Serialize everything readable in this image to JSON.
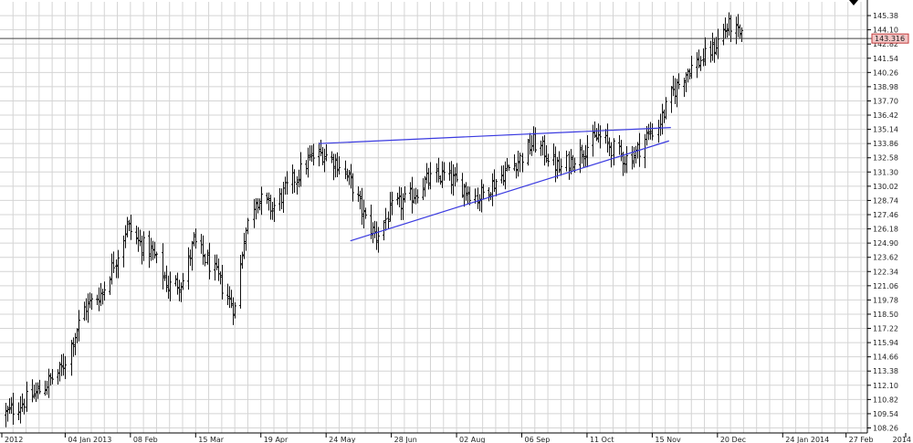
{
  "chart_data": {
    "type": "ohlc",
    "title": "",
    "xlabel": "",
    "ylabel": "",
    "ylim": [
      108.26,
      146.66
    ],
    "y_ticks": [
      145.38,
      144.1,
      142.82,
      141.54,
      140.26,
      138.98,
      137.7,
      136.42,
      135.14,
      133.86,
      132.58,
      131.3,
      130.02,
      128.74,
      127.46,
      126.18,
      124.9,
      123.62,
      122.34,
      121.06,
      119.78,
      118.5,
      117.22,
      115.94,
      114.66,
      113.38,
      112.1,
      110.82,
      109.54,
      108.26
    ],
    "x_tick_labels": [
      "2012",
      "04 Jan 2013",
      "08 Feb",
      "15 Mar",
      "19 Apr",
      "24 May",
      "28 Jun",
      "02 Aug",
      "06 Sep",
      "11 Oct",
      "15 Nov",
      "20 Dec",
      "24 Jan 2014",
      "27 Feb",
      "2014"
    ],
    "x_tick_dates": [
      "2012-12-01",
      "2013-01-04",
      "2013-02-08",
      "2013-03-15",
      "2013-04-19",
      "2013-05-24",
      "2013-06-28",
      "2013-08-02",
      "2013-09-06",
      "2013-10-11",
      "2013-11-15",
      "2013-12-20",
      "2014-01-24",
      "2014-02-27",
      "2014-03-31"
    ],
    "x_range": [
      "2012-12-01",
      "2014-03-31"
    ],
    "grid": true,
    "current_price": "143.316",
    "series_points": [
      [
        "2012-12-03",
        109.5
      ],
      [
        "2012-12-20",
        111.5
      ],
      [
        "2013-01-02",
        113.5
      ],
      [
        "2013-01-14",
        119.0
      ],
      [
        "2013-01-24",
        120.5
      ],
      [
        "2013-02-01",
        124.0
      ],
      [
        "2013-02-06",
        126.5
      ],
      [
        "2013-02-12",
        125.0
      ],
      [
        "2013-02-20",
        124.0
      ],
      [
        "2013-02-28",
        121.0
      ],
      [
        "2013-03-08",
        121.5
      ],
      [
        "2013-03-14",
        125.0
      ],
      [
        "2013-03-20",
        123.5
      ],
      [
        "2013-03-26",
        122.0
      ],
      [
        "2013-04-01",
        120.0
      ],
      [
        "2013-04-05",
        119.0
      ],
      [
        "2013-04-10",
        125.5
      ],
      [
        "2013-04-16",
        129.0
      ],
      [
        "2013-04-25",
        128.0
      ],
      [
        "2013-05-06",
        130.5
      ],
      [
        "2013-05-15",
        132.5
      ],
      [
        "2013-05-22",
        133.0
      ],
      [
        "2013-05-31",
        132.0
      ],
      [
        "2013-06-07",
        130.0
      ],
      [
        "2013-06-14",
        127.0
      ],
      [
        "2013-06-20",
        125.5
      ],
      [
        "2013-06-28",
        128.0
      ],
      [
        "2013-07-08",
        129.0
      ],
      [
        "2013-07-17",
        130.5
      ],
      [
        "2013-07-26",
        131.0
      ],
      [
        "2013-08-05",
        130.0
      ],
      [
        "2013-08-13",
        129.0
      ],
      [
        "2013-08-20",
        130.0
      ],
      [
        "2013-08-29",
        131.5
      ],
      [
        "2013-09-05",
        132.5
      ],
      [
        "2013-09-12",
        134.0
      ],
      [
        "2013-09-19",
        133.0
      ],
      [
        "2013-09-26",
        131.5
      ],
      [
        "2013-10-03",
        132.5
      ],
      [
        "2013-10-10",
        133.5
      ],
      [
        "2013-10-17",
        134.5
      ],
      [
        "2013-10-24",
        133.5
      ],
      [
        "2013-10-31",
        132.5
      ],
      [
        "2013-11-06",
        133.0
      ],
      [
        "2013-11-12",
        134.5
      ],
      [
        "2013-11-18",
        135.5
      ],
      [
        "2013-11-26",
        138.5
      ],
      [
        "2013-12-04",
        140.5
      ],
      [
        "2013-12-12",
        141.5
      ],
      [
        "2013-12-18",
        142.5
      ],
      [
        "2013-12-23",
        144.0
      ],
      [
        "2013-12-27",
        144.5
      ],
      [
        "2014-01-02",
        143.3
      ]
    ],
    "trend_lines": [
      {
        "from": [
          "2013-05-20",
          133.86
        ],
        "to": [
          "2013-11-25",
          135.3
        ]
      },
      {
        "from": [
          "2013-06-06",
          125.1
        ],
        "to": [
          "2013-11-24",
          134.1
        ]
      }
    ]
  },
  "colors": {
    "bars": "#111111",
    "trend": "#3a3ae0",
    "grid": "#d4d4d4",
    "price_tag_bg": "#f2c6c6",
    "price_tag_border": "#c23b3b"
  },
  "icons": {
    "top_right_marker": "triangle-down-icon"
  }
}
